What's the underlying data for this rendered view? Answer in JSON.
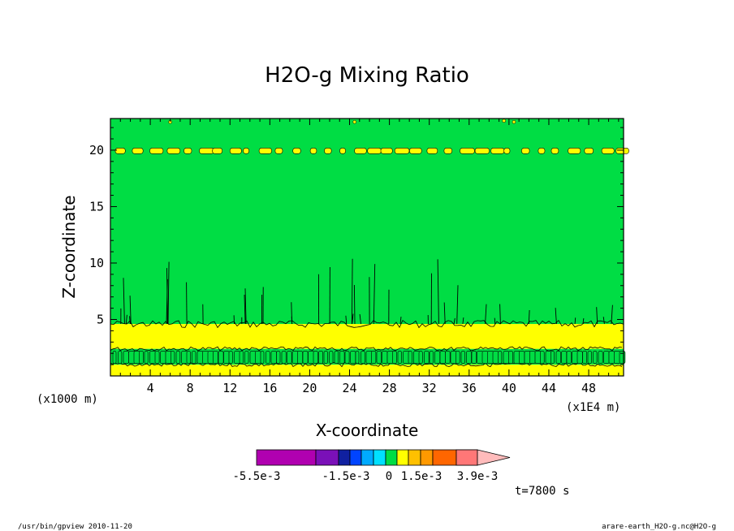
{
  "chart_data": {
    "type": "heatmap",
    "title": "H2O-g Mixing Ratio",
    "xlabel": "X-coordinate",
    "ylabel": "Z-coordinate",
    "x_unit_left": "(x1000 m)",
    "x_unit_right": "(x1E4 m)",
    "xlim": [
      0,
      51.5
    ],
    "ylim": [
      0,
      22.8
    ],
    "xticks": [
      4,
      8,
      12,
      16,
      20,
      24,
      28,
      32,
      36,
      40,
      44,
      48
    ],
    "yticks": [
      5,
      10,
      15,
      20
    ],
    "layers": [
      {
        "z_from": 0.0,
        "z_to": 1.0,
        "color": "#ffff00"
      },
      {
        "z_from": 1.0,
        "z_to": 2.4,
        "color": "#00dd44"
      },
      {
        "z_from": 2.4,
        "z_to": 4.6,
        "color": "#ffff00"
      },
      {
        "z_from": 4.6,
        "z_to": 22.8,
        "color": "#00dd44"
      }
    ],
    "band_z": 19.9,
    "colorbar": {
      "colors": [
        "#b000b0",
        "#7a10b8",
        "#1020a0",
        "#0044ff",
        "#00aaff",
        "#00e0ff",
        "#00dd44",
        "#ffff00",
        "#ffc000",
        "#ff9900",
        "#ff6600",
        "#ff2200",
        "#ff7777"
      ],
      "extend_color": "#ffbbbb",
      "tick_labels": [
        "-5.5e-3",
        "-1.5e-3",
        "0",
        "1.5e-3",
        "3.9e-3"
      ]
    },
    "time_label": "t=7800 s"
  },
  "footer": {
    "left": "/usr/bin/gpview  2010-11-20",
    "right": "arare-earth_H2O-g.nc@H2O-g"
  }
}
